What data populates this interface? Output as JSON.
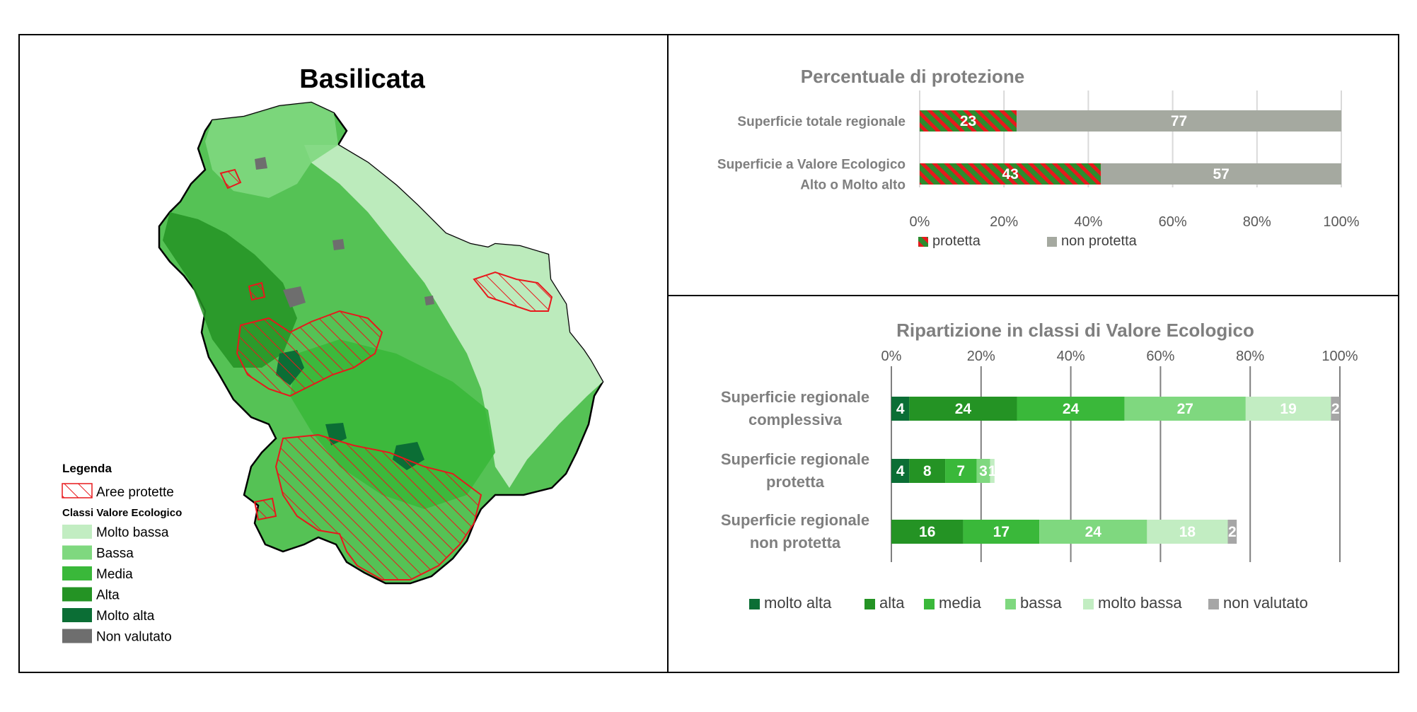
{
  "map": {
    "title": "Basilicata",
    "legend": {
      "heading": "Legenda",
      "protected_label": "Aree protette",
      "classes_heading": "Classi Valore Ecologico",
      "items": [
        {
          "label": "Molto bassa",
          "color": "#c2edc2"
        },
        {
          "label": "Bassa",
          "color": "#7fd87f"
        },
        {
          "label": "Media",
          "color": "#3ab83a"
        },
        {
          "label": "Alta",
          "color": "#249324"
        },
        {
          "label": "Molto alta",
          "color": "#0b6e35"
        },
        {
          "label": "Non valutato",
          "color": "#6e6e6e"
        }
      ],
      "protected_color": "#e8181c"
    }
  },
  "chart_data": [
    {
      "type": "bar",
      "orientation": "horizontal",
      "stacked": true,
      "title": "Percentuale di protezione",
      "categories": [
        "Superficie totale regionale",
        "Superficie a Valore Ecologico\nAlto o Molto alto"
      ],
      "series": [
        {
          "name": "protetta",
          "values": [
            23,
            43
          ],
          "color": "#e8181c",
          "color2": "#2e8b2e",
          "pattern": "hatch"
        },
        {
          "name": "non protetta",
          "values": [
            77,
            57
          ],
          "color": "#a5a9a0"
        }
      ],
      "xlim": [
        0,
        100
      ],
      "ticks": [
        "0%",
        "20%",
        "40%",
        "60%",
        "80%",
        "100%"
      ],
      "grid": true,
      "legend_position": "bottom-left"
    },
    {
      "type": "bar",
      "orientation": "horizontal",
      "stacked": true,
      "title": "Ripartizione in classi di Valore Ecologico",
      "categories": [
        "Superficie regionale\ncomplessiva",
        "Superficie regionale\nprotetta",
        "Superficie regionale\nnon protetta"
      ],
      "series": [
        {
          "name": "molto alta",
          "values": [
            4,
            4,
            0
          ],
          "color": "#0b6e35"
        },
        {
          "name": "alta",
          "values": [
            24,
            8,
            16
          ],
          "color": "#249324"
        },
        {
          "name": "media",
          "values": [
            24,
            7,
            17
          ],
          "color": "#3ab83a"
        },
        {
          "name": "bassa",
          "values": [
            27,
            3,
            24
          ],
          "color": "#7fd87f"
        },
        {
          "name": "molto bassa",
          "values": [
            19,
            1,
            18
          ],
          "color": "#c2edc2"
        },
        {
          "name": "non valutato",
          "values": [
            2,
            0,
            2
          ],
          "color": "#a6a6a6"
        }
      ],
      "xlim": [
        0,
        100
      ],
      "ticks": [
        "0%",
        "20%",
        "40%",
        "60%",
        "80%",
        "100%"
      ],
      "grid": true,
      "legend_position": "bottom"
    }
  ]
}
